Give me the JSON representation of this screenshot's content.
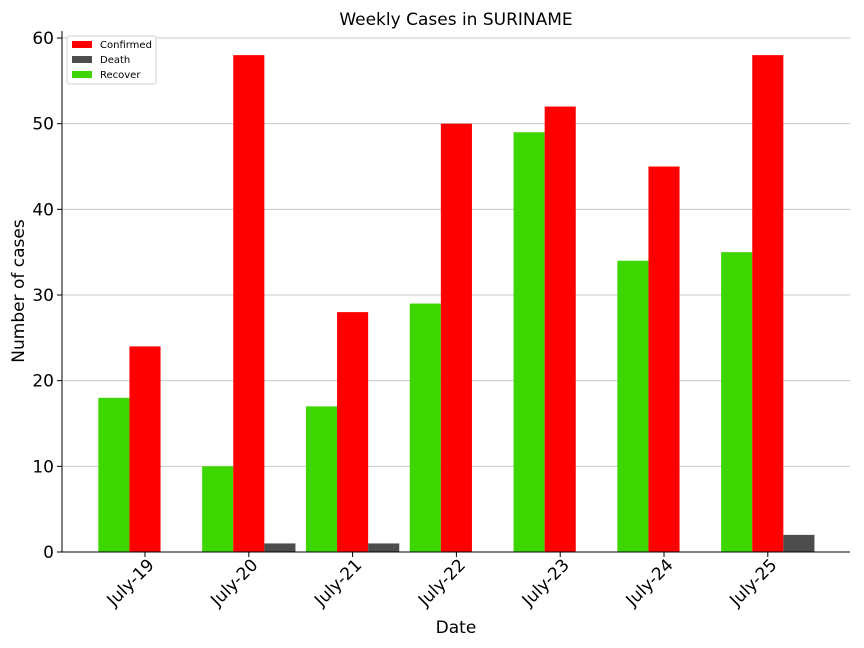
{
  "chart_data": {
    "type": "bar",
    "title": "Weekly Cases in SURINAME",
    "xlabel": "Date",
    "ylabel": "Number of cases",
    "categories": [
      "July-19",
      "July-20",
      "July-21",
      "July-22",
      "July-23",
      "July-24",
      "July-25"
    ],
    "series": [
      {
        "name": "Recover",
        "color": "#3dd600",
        "values": [
          18,
          10,
          17,
          29,
          49,
          34,
          35
        ]
      },
      {
        "name": "Confirmed",
        "color": "#ff0000",
        "values": [
          24,
          58,
          28,
          50,
          52,
          45,
          58
        ]
      },
      {
        "name": "Death",
        "color": "#4d4d4d",
        "values": [
          0,
          1,
          1,
          0,
          0,
          0,
          2
        ]
      }
    ],
    "legend_order": [
      "Confirmed",
      "Death",
      "Recover"
    ],
    "ylim": [
      0,
      60
    ],
    "yticks": [
      0,
      10,
      20,
      30,
      40,
      50,
      60
    ],
    "grid": "horizontal",
    "legend_position": "top-left"
  }
}
